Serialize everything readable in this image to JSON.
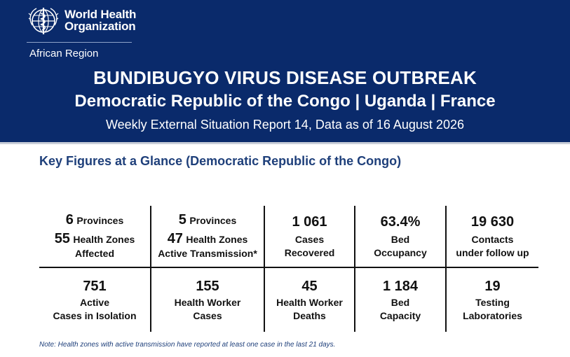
{
  "header": {
    "org_line1": "World Health",
    "org_line2": "Organization",
    "region": "African Region",
    "title": "BUNDIBUGYO VIRUS DISEASE OUTBREAK",
    "countries": "Democratic Republic of the Congo | Uganda | France",
    "subtitle": "Weekly External Situation Report 14, Data as of 16 August 2026"
  },
  "section_title": "Key Figures at a Glance (Democratic Republic of the Congo)",
  "figures": {
    "c1": {
      "n1": "6",
      "l1": "Provinces",
      "n2": "55",
      "l2": "Health Zones",
      "l3": "Affected"
    },
    "c2": {
      "n1": "5",
      "l1": "Provinces",
      "n2": "47",
      "l2": "Health Zones",
      "l3": "Active Transmission*"
    },
    "c3": {
      "value": "1 061",
      "line1": "Cases",
      "line2": "Recovered"
    },
    "c4": {
      "value": "63.4%",
      "line1": "Bed",
      "line2": "Occupancy"
    },
    "c5": {
      "value": "19 630",
      "line1": "Contacts",
      "line2": "under follow up"
    },
    "c6": {
      "value": "751",
      "line1": "Active",
      "line2": "Cases in Isolation"
    },
    "c7": {
      "value": "155",
      "line1": "Health Worker",
      "line2": "Cases"
    },
    "c8": {
      "value": "45",
      "line1": "Health Worker",
      "line2": "Deaths"
    },
    "c9": {
      "value": "1 184",
      "line1": "Bed",
      "line2": "Capacity"
    },
    "c10": {
      "value": "19",
      "line1": "Testing",
      "line2": "Laboratories"
    }
  },
  "note": "Note: Health zones with active transmission have reported at least one case in the last 21 days."
}
